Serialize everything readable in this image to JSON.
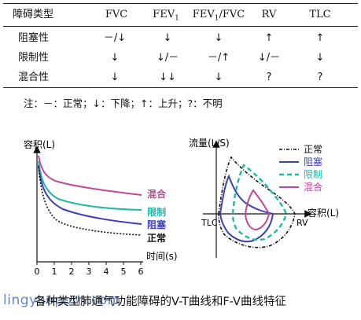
{
  "table": {
    "headers": [
      "障碍类型",
      "FVC",
      "FEV",
      "FEV",
      "RV",
      "TLC"
    ],
    "header_sub": "1",
    "header_fev_fvc_suffix": "/FVC",
    "rows": [
      {
        "type": "阻塞性",
        "fvc": "－/↓",
        "fev1": "↓",
        "ratio": "↓",
        "rv": "↑",
        "tlc": "↑"
      },
      {
        "type": "限制性",
        "fvc": "↓",
        "fev1": "↓/－",
        "ratio": "－/↑",
        "rv": "↓/－",
        "tlc": "↓"
      },
      {
        "type": "混合性",
        "fvc": "↓",
        "fev1": "↓↓",
        "ratio": "↓",
        "rv": "?",
        "tlc": "?"
      }
    ],
    "note": "注：－：正常；↓：下降；↑：上升；?：不明"
  },
  "vt_chart": {
    "ylabel": "容积(L)",
    "xlabel": "时间(s)",
    "ticks": [
      "0",
      "1",
      "2",
      "3",
      "4",
      "5",
      "6"
    ],
    "labels": {
      "mixed": "混合",
      "restrictive": "限制",
      "obstructive": "阻塞",
      "normal": "正常"
    }
  },
  "fv_chart": {
    "ylabel": "流量(L/S)",
    "xlabel": "容积(L)",
    "tlc": "TLC",
    "rv": "RV",
    "legend": [
      "正常",
      "阻塞",
      "限制",
      "混合"
    ]
  },
  "colors": {
    "normal": "#111111",
    "obstructive": "#3f3fb8",
    "restrictive": "#1fb7a7",
    "mixed": "#c0479b"
  },
  "caption": "各种类型肺通气功能障碍的V-T曲线和F-V曲线特征",
  "watermark": "lingyaoporn.com"
}
